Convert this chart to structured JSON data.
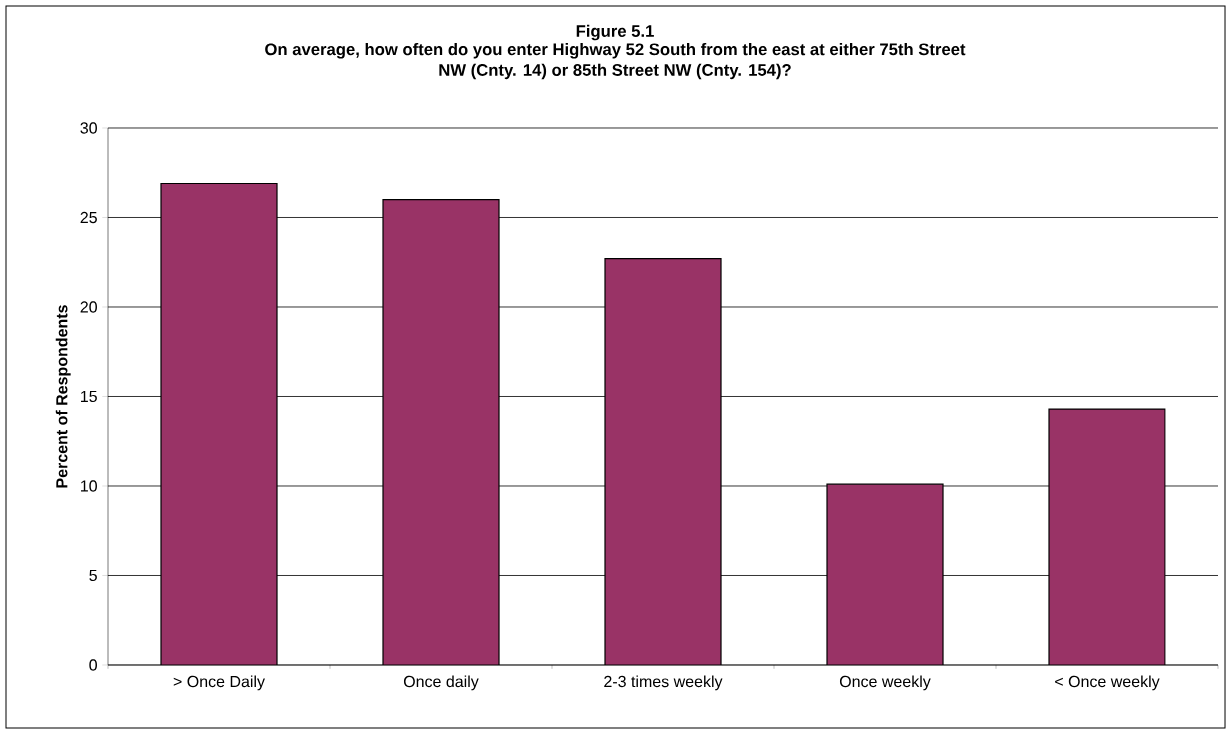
{
  "chart_data": {
    "type": "bar",
    "title": "Figure 5.1",
    "subtitle": "On average, how often do you enter Highway 52 South from the east at either 75th Street NW (Cnty. 14) or 85th Street NW (Cnty. 154)?",
    "ylabel": "Percent of Respondents",
    "categories": [
      "> Once Daily",
      "Once daily",
      "2-3 times weekly",
      "Once weekly",
      "< Once weekly"
    ],
    "values": [
      26.9,
      26.0,
      22.7,
      10.1,
      14.3
    ],
    "color": "#993366",
    "ylim": [
      0,
      30
    ],
    "yticks": [
      0,
      5,
      10,
      15,
      20,
      25,
      30
    ],
    "grid": "y"
  }
}
